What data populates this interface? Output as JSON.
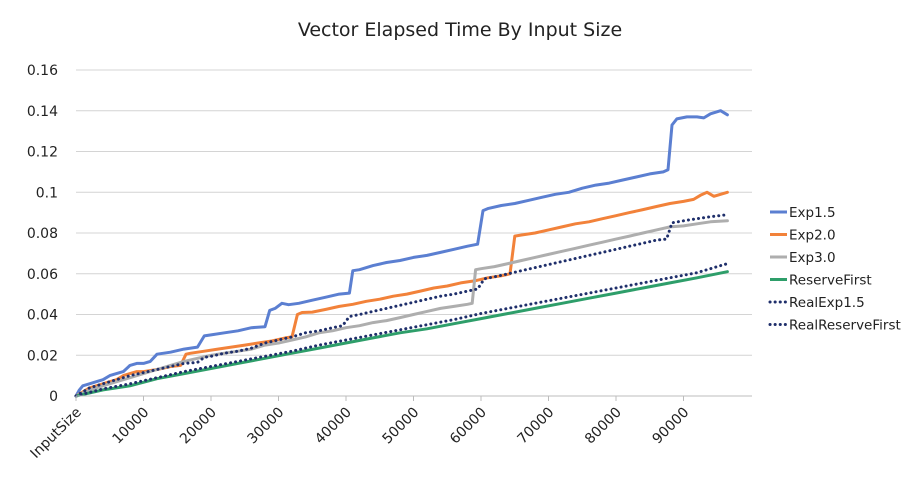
{
  "chart_data": {
    "type": "line",
    "title": "Vector Elapsed Time By Input Size",
    "xlabel": "",
    "ylabel": "",
    "x_tick_labels": [
      "InputSize",
      "10000",
      "20000",
      "30000",
      "40000",
      "50000",
      "60000",
      "70000",
      "80000",
      "90000"
    ],
    "x_tick_values": [
      0,
      10000,
      20000,
      30000,
      40000,
      50000,
      60000,
      70000,
      80000,
      90000
    ],
    "xlim": [
      0,
      100000
    ],
    "ylim": [
      0,
      0.16
    ],
    "y_ticks": [
      0,
      0.02,
      0.04,
      0.06,
      0.08,
      0.1,
      0.12,
      0.14,
      0.16
    ],
    "y_tick_labels": [
      "0",
      "0.02",
      "0.04",
      "0.06",
      "0.08",
      "0.1",
      "0.12",
      "0.14",
      "0.16"
    ],
    "grid": "horizontal",
    "legend_position": "right",
    "series": [
      {
        "name": "Exp1.5",
        "color": "#5B7FD1",
        "style": "solid",
        "points": [
          [
            0,
            0
          ],
          [
            500,
            0.003
          ],
          [
            1000,
            0.005
          ],
          [
            2000,
            0.006
          ],
          [
            3000,
            0.007
          ],
          [
            4000,
            0.008
          ],
          [
            5000,
            0.01
          ],
          [
            6000,
            0.011
          ],
          [
            7000,
            0.012
          ],
          [
            8000,
            0.015
          ],
          [
            9000,
            0.016
          ],
          [
            10000,
            0.016
          ],
          [
            11000,
            0.017
          ],
          [
            12000,
            0.0205
          ],
          [
            14000,
            0.0215
          ],
          [
            16000,
            0.023
          ],
          [
            18000,
            0.024
          ],
          [
            19000,
            0.0295
          ],
          [
            20000,
            0.03
          ],
          [
            22000,
            0.031
          ],
          [
            24000,
            0.032
          ],
          [
            26000,
            0.0335
          ],
          [
            28000,
            0.034
          ],
          [
            28700,
            0.042
          ],
          [
            29500,
            0.043
          ],
          [
            30500,
            0.0455
          ],
          [
            31500,
            0.0448
          ],
          [
            33000,
            0.0455
          ],
          [
            35000,
            0.047
          ],
          [
            37000,
            0.0485
          ],
          [
            39000,
            0.05
          ],
          [
            40500,
            0.0505
          ],
          [
            41000,
            0.0615
          ],
          [
            42000,
            0.062
          ],
          [
            44000,
            0.064
          ],
          [
            46000,
            0.0655
          ],
          [
            48000,
            0.0665
          ],
          [
            50000,
            0.068
          ],
          [
            52000,
            0.069
          ],
          [
            54000,
            0.0705
          ],
          [
            56000,
            0.072
          ],
          [
            58000,
            0.0735
          ],
          [
            59500,
            0.0745
          ],
          [
            60300,
            0.091
          ],
          [
            61000,
            0.092
          ],
          [
            63000,
            0.0935
          ],
          [
            65000,
            0.0945
          ],
          [
            67000,
            0.096
          ],
          [
            69000,
            0.0975
          ],
          [
            71000,
            0.099
          ],
          [
            73000,
            0.1
          ],
          [
            75000,
            0.102
          ],
          [
            77000,
            0.1035
          ],
          [
            79000,
            0.1045
          ],
          [
            81000,
            0.106
          ],
          [
            83000,
            0.1075
          ],
          [
            85000,
            0.109
          ],
          [
            87000,
            0.11
          ],
          [
            87700,
            0.111
          ],
          [
            88300,
            0.133
          ],
          [
            89000,
            0.136
          ],
          [
            90500,
            0.137
          ],
          [
            92000,
            0.137
          ],
          [
            93000,
            0.1365
          ],
          [
            94000,
            0.1385
          ],
          [
            95500,
            0.14
          ],
          [
            96500,
            0.138
          ]
        ]
      },
      {
        "name": "Exp2.0",
        "color": "#F2823A",
        "style": "solid",
        "points": [
          [
            0,
            0
          ],
          [
            1000,
            0.002
          ],
          [
            2000,
            0.004
          ],
          [
            3000,
            0.005
          ],
          [
            4000,
            0.006
          ],
          [
            5000,
            0.007
          ],
          [
            6000,
            0.008
          ],
          [
            7000,
            0.01
          ],
          [
            8000,
            0.011
          ],
          [
            9000,
            0.012
          ],
          [
            10000,
            0.012
          ],
          [
            12000,
            0.013
          ],
          [
            14000,
            0.0145
          ],
          [
            15500,
            0.015
          ],
          [
            16300,
            0.0205
          ],
          [
            17000,
            0.021
          ],
          [
            19000,
            0.022
          ],
          [
            21000,
            0.023
          ],
          [
            23000,
            0.024
          ],
          [
            25000,
            0.025
          ],
          [
            27000,
            0.026
          ],
          [
            29000,
            0.027
          ],
          [
            31000,
            0.0285
          ],
          [
            32000,
            0.029
          ],
          [
            32800,
            0.04
          ],
          [
            33500,
            0.041
          ],
          [
            35000,
            0.0412
          ],
          [
            37000,
            0.0425
          ],
          [
            39000,
            0.044
          ],
          [
            41000,
            0.045
          ],
          [
            43000,
            0.0465
          ],
          [
            45000,
            0.0475
          ],
          [
            47000,
            0.049
          ],
          [
            49000,
            0.05
          ],
          [
            51000,
            0.0515
          ],
          [
            53000,
            0.053
          ],
          [
            55000,
            0.054
          ],
          [
            57000,
            0.0555
          ],
          [
            59000,
            0.0565
          ],
          [
            61000,
            0.058
          ],
          [
            63000,
            0.059
          ],
          [
            64300,
            0.06
          ],
          [
            65000,
            0.0785
          ],
          [
            66000,
            0.079
          ],
          [
            68000,
            0.08
          ],
          [
            70000,
            0.0815
          ],
          [
            72000,
            0.083
          ],
          [
            74000,
            0.0845
          ],
          [
            76000,
            0.0855
          ],
          [
            78000,
            0.087
          ],
          [
            80000,
            0.0885
          ],
          [
            82000,
            0.09
          ],
          [
            84000,
            0.0915
          ],
          [
            86000,
            0.093
          ],
          [
            88000,
            0.0945
          ],
          [
            90000,
            0.0955
          ],
          [
            91500,
            0.0965
          ],
          [
            92500,
            0.0985
          ],
          [
            93500,
            0.1
          ],
          [
            94500,
            0.098
          ],
          [
            95500,
            0.099
          ],
          [
            96500,
            0.1
          ]
        ]
      },
      {
        "name": "Exp3.0",
        "color": "#AEAEAE",
        "style": "solid",
        "points": [
          [
            0,
            0
          ],
          [
            2000,
            0.003
          ],
          [
            4000,
            0.005
          ],
          [
            6000,
            0.007
          ],
          [
            8000,
            0.009
          ],
          [
            10000,
            0.011
          ],
          [
            12000,
            0.013
          ],
          [
            14000,
            0.015
          ],
          [
            16000,
            0.017
          ],
          [
            18000,
            0.0185
          ],
          [
            20000,
            0.02
          ],
          [
            22000,
            0.021
          ],
          [
            24000,
            0.022
          ],
          [
            26000,
            0.023
          ],
          [
            28000,
            0.025
          ],
          [
            30000,
            0.026
          ],
          [
            32000,
            0.0275
          ],
          [
            34000,
            0.029
          ],
          [
            36000,
            0.031
          ],
          [
            38000,
            0.032
          ],
          [
            40000,
            0.0335
          ],
          [
            42000,
            0.0345
          ],
          [
            44000,
            0.036
          ],
          [
            46000,
            0.037
          ],
          [
            48000,
            0.0385
          ],
          [
            50000,
            0.04
          ],
          [
            52000,
            0.0415
          ],
          [
            54000,
            0.043
          ],
          [
            56000,
            0.044
          ],
          [
            58000,
            0.045
          ],
          [
            58700,
            0.0455
          ],
          [
            59200,
            0.062
          ],
          [
            60000,
            0.0625
          ],
          [
            62000,
            0.0635
          ],
          [
            64000,
            0.065
          ],
          [
            66000,
            0.0665
          ],
          [
            68000,
            0.068
          ],
          [
            70000,
            0.0695
          ],
          [
            72000,
            0.071
          ],
          [
            74000,
            0.0725
          ],
          [
            76000,
            0.074
          ],
          [
            78000,
            0.0755
          ],
          [
            80000,
            0.077
          ],
          [
            82000,
            0.0785
          ],
          [
            84000,
            0.08
          ],
          [
            86000,
            0.0815
          ],
          [
            88000,
            0.083
          ],
          [
            90000,
            0.0835
          ],
          [
            92000,
            0.0845
          ],
          [
            94000,
            0.0855
          ],
          [
            96500,
            0.086
          ]
        ]
      },
      {
        "name": "ReserveFirst",
        "color": "#2E9E6A",
        "style": "solid",
        "points": [
          [
            0,
            0
          ],
          [
            4000,
            0.003
          ],
          [
            8000,
            0.005
          ],
          [
            12000,
            0.0085
          ],
          [
            16000,
            0.011
          ],
          [
            20000,
            0.0135
          ],
          [
            24000,
            0.016
          ],
          [
            28000,
            0.0185
          ],
          [
            32000,
            0.021
          ],
          [
            36000,
            0.0235
          ],
          [
            40000,
            0.026
          ],
          [
            44000,
            0.0285
          ],
          [
            48000,
            0.031
          ],
          [
            52000,
            0.033
          ],
          [
            56000,
            0.0355
          ],
          [
            60000,
            0.038
          ],
          [
            64000,
            0.0405
          ],
          [
            68000,
            0.043
          ],
          [
            72000,
            0.0455
          ],
          [
            76000,
            0.048
          ],
          [
            80000,
            0.0505
          ],
          [
            84000,
            0.053
          ],
          [
            88000,
            0.0555
          ],
          [
            92000,
            0.058
          ],
          [
            96500,
            0.061
          ]
        ]
      },
      {
        "name": "RealExp1.5",
        "color": "#1F2F6B",
        "style": "dotted",
        "points": [
          [
            0,
            0
          ],
          [
            2000,
            0.004
          ],
          [
            4000,
            0.006
          ],
          [
            6000,
            0.008
          ],
          [
            8000,
            0.01
          ],
          [
            10000,
            0.0115
          ],
          [
            12000,
            0.013
          ],
          [
            14000,
            0.0145
          ],
          [
            16000,
            0.016
          ],
          [
            18000,
            0.0165
          ],
          [
            19000,
            0.019
          ],
          [
            20000,
            0.0195
          ],
          [
            22000,
            0.021
          ],
          [
            24000,
            0.022
          ],
          [
            26000,
            0.0235
          ],
          [
            28000,
            0.026
          ],
          [
            30000,
            0.0275
          ],
          [
            32000,
            0.029
          ],
          [
            34000,
            0.031
          ],
          [
            36000,
            0.032
          ],
          [
            38000,
            0.0335
          ],
          [
            39500,
            0.0345
          ],
          [
            40500,
            0.039
          ],
          [
            42000,
            0.04
          ],
          [
            44000,
            0.0415
          ],
          [
            46000,
            0.043
          ],
          [
            48000,
            0.0445
          ],
          [
            50000,
            0.046
          ],
          [
            52000,
            0.0475
          ],
          [
            54000,
            0.049
          ],
          [
            56000,
            0.05
          ],
          [
            58000,
            0.0515
          ],
          [
            59500,
            0.0525
          ],
          [
            60500,
            0.0575
          ],
          [
            62000,
            0.0585
          ],
          [
            64000,
            0.06
          ],
          [
            66000,
            0.0615
          ],
          [
            68000,
            0.063
          ],
          [
            70000,
            0.0645
          ],
          [
            72000,
            0.066
          ],
          [
            74000,
            0.0675
          ],
          [
            76000,
            0.069
          ],
          [
            78000,
            0.0705
          ],
          [
            80000,
            0.072
          ],
          [
            82000,
            0.0735
          ],
          [
            84000,
            0.075
          ],
          [
            86000,
            0.0765
          ],
          [
            87500,
            0.077
          ],
          [
            88300,
            0.085
          ],
          [
            90000,
            0.086
          ],
          [
            92000,
            0.087
          ],
          [
            94000,
            0.088
          ],
          [
            96500,
            0.089
          ]
        ]
      },
      {
        "name": "RealReserveFirst",
        "color": "#1F2F6B",
        "style": "dotted",
        "points": [
          [
            0,
            0
          ],
          [
            4000,
            0.0035
          ],
          [
            8000,
            0.006
          ],
          [
            12000,
            0.009
          ],
          [
            16000,
            0.012
          ],
          [
            20000,
            0.0145
          ],
          [
            24000,
            0.017
          ],
          [
            28000,
            0.0195
          ],
          [
            32000,
            0.022
          ],
          [
            36000,
            0.025
          ],
          [
            40000,
            0.0275
          ],
          [
            44000,
            0.03
          ],
          [
            48000,
            0.0325
          ],
          [
            52000,
            0.035
          ],
          [
            56000,
            0.0375
          ],
          [
            60000,
            0.0405
          ],
          [
            64000,
            0.043
          ],
          [
            68000,
            0.0455
          ],
          [
            72000,
            0.048
          ],
          [
            76000,
            0.0505
          ],
          [
            80000,
            0.053
          ],
          [
            84000,
            0.0555
          ],
          [
            88000,
            0.058
          ],
          [
            92000,
            0.0605
          ],
          [
            96500,
            0.065
          ]
        ]
      }
    ]
  }
}
